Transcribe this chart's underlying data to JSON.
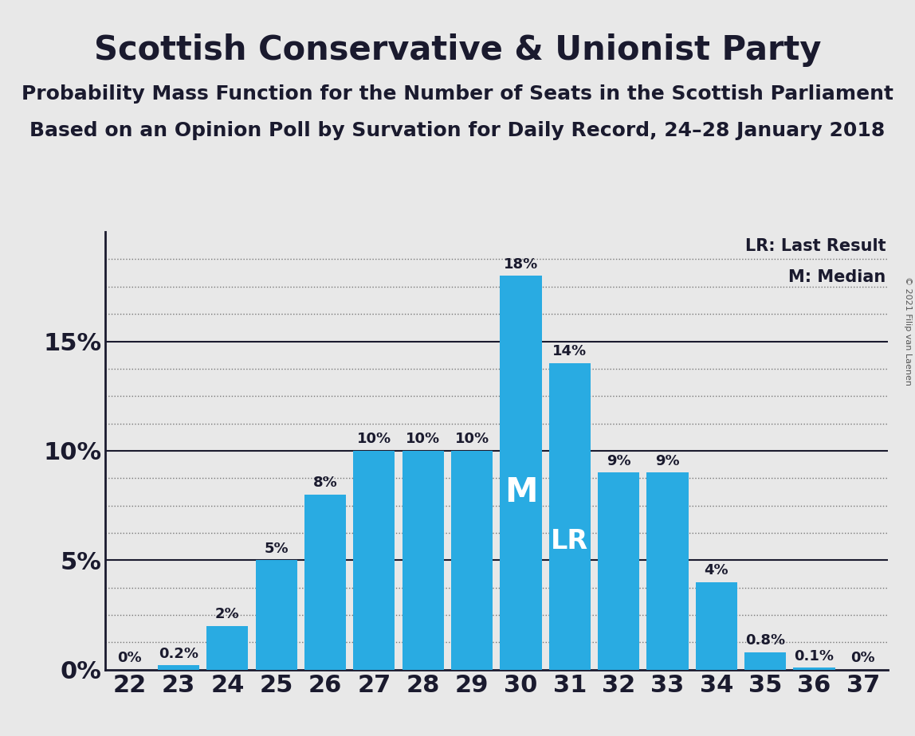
{
  "title": "Scottish Conservative & Unionist Party",
  "subtitle1": "Probability Mass Function for the Number of Seats in the Scottish Parliament",
  "subtitle2": "Based on an Opinion Poll by Survation for Daily Record, 24–28 January 2018",
  "copyright": "© 2021 Filip van Laenen",
  "categories": [
    22,
    23,
    24,
    25,
    26,
    27,
    28,
    29,
    30,
    31,
    32,
    33,
    34,
    35,
    36,
    37
  ],
  "values": [
    0.0,
    0.2,
    2.0,
    5.0,
    8.0,
    10.0,
    10.0,
    10.0,
    18.0,
    14.0,
    9.0,
    9.0,
    4.0,
    0.8,
    0.1,
    0.0
  ],
  "labels": [
    "0%",
    "0.2%",
    "2%",
    "5%",
    "8%",
    "10%",
    "10%",
    "10%",
    "18%",
    "14%",
    "9%",
    "9%",
    "4%",
    "0.8%",
    "0.1%",
    "0%"
  ],
  "bar_color": "#29ABE2",
  "median_seat": 30,
  "lr_seat": 31,
  "background_color": "#E8E8E8",
  "ytick_values": [
    0,
    5,
    10,
    15
  ],
  "ytick_labels": [
    "0%",
    "5%",
    "10%",
    "15%"
  ],
  "ylim": [
    0,
    20
  ],
  "dotted_lines": [
    1.25,
    2.5,
    3.75,
    6.25,
    7.5,
    8.75,
    11.25,
    12.5,
    13.75,
    16.25,
    17.5,
    18.75
  ],
  "solid_lines": [
    5,
    10,
    15
  ],
  "legend_lr": "LR: Last Result",
  "legend_m": "M: Median",
  "title_fontsize": 30,
  "subtitle_fontsize": 18,
  "label_fontsize": 13,
  "axis_tick_fontsize": 22
}
